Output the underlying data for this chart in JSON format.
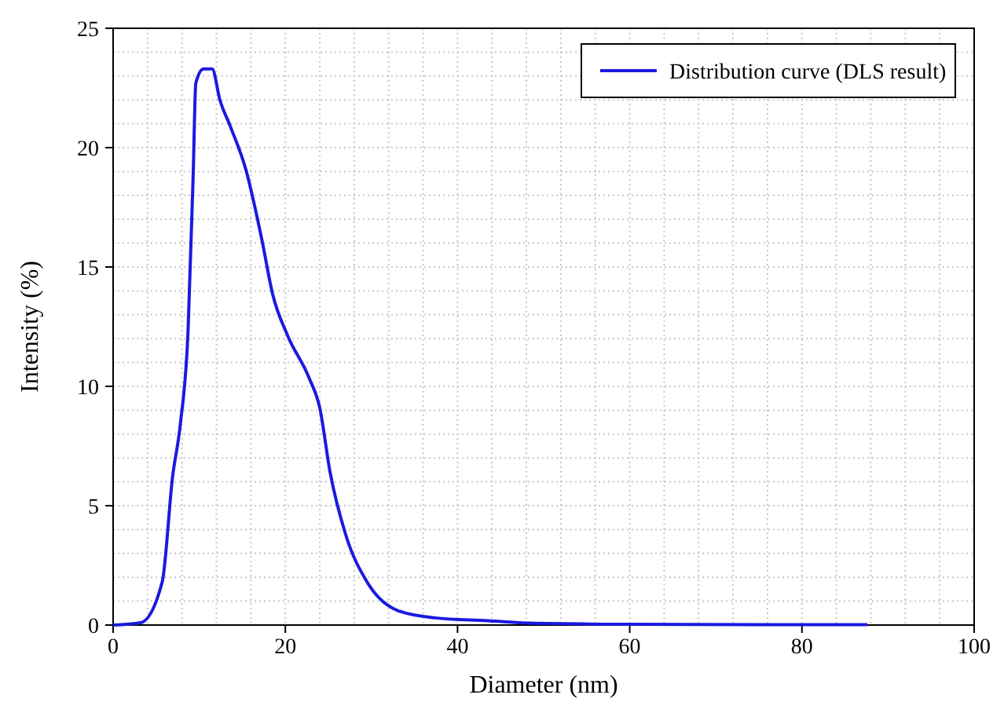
{
  "chart_data": {
    "type": "line",
    "xlabel": "Diameter (nm)",
    "ylabel": "Intensity (%)",
    "xlim": [
      0,
      100
    ],
    "ylim": [
      0,
      25
    ],
    "xticks": [
      0,
      {
        "value": 4,
        "label": null
      },
      {
        "value": 8,
        "label": null
      },
      {
        "value": 12,
        "label": null
      },
      {
        "value": 16,
        "label": null
      },
      20,
      {
        "value": 24,
        "label": null
      },
      {
        "value": 28,
        "label": null
      },
      {
        "value": 32,
        "label": null
      },
      {
        "value": 36,
        "label": null
      },
      40,
      {
        "value": 44,
        "label": null
      },
      {
        "value": 48,
        "label": null
      },
      {
        "value": 52,
        "label": null
      },
      {
        "value": 56,
        "label": null
      },
      60,
      {
        "value": 64,
        "label": null
      },
      {
        "value": 68,
        "label": null
      },
      {
        "value": 72,
        "label": null
      },
      {
        "value": 76,
        "label": null
      },
      80,
      {
        "value": 84,
        "label": null
      },
      {
        "value": 88,
        "label": null
      },
      {
        "value": 92,
        "label": null
      },
      {
        "value": 96,
        "label": null
      },
      100
    ],
    "yticks": [
      0,
      {
        "value": 1,
        "label": null
      },
      {
        "value": 2,
        "label": null
      },
      {
        "value": 3,
        "label": null
      },
      {
        "value": 4,
        "label": null
      },
      5,
      {
        "value": 6,
        "label": null
      },
      {
        "value": 7,
        "label": null
      },
      {
        "value": 8,
        "label": null
      },
      {
        "value": 9,
        "label": null
      },
      10,
      {
        "value": 11,
        "label": null
      },
      {
        "value": 12,
        "label": null
      },
      {
        "value": 13,
        "label": null
      },
      {
        "value": 14,
        "label": null
      },
      15,
      {
        "value": 16,
        "label": null
      },
      {
        "value": 17,
        "label": null
      },
      {
        "value": 18,
        "label": null
      },
      {
        "value": 19,
        "label": null
      },
      20,
      {
        "value": 21,
        "label": null
      },
      {
        "value": 22,
        "label": null
      },
      {
        "value": 23,
        "label": null
      },
      {
        "value": 24,
        "label": null
      },
      25
    ],
    "grid": true,
    "legend": "top right",
    "line_style": "solid",
    "series": [
      {
        "name": "Distribution curve (DLS result)",
        "color": "#1a1ae0",
        "x": [
          0,
          3.2,
          5.7,
          6.9,
          7.8,
          8.7,
          9.3,
          9.6,
          10.5,
          11.5,
          12.4,
          13.6,
          15.4,
          17.3,
          18.5,
          20.3,
          22.7,
          24.0,
          25.2,
          27.0,
          29.5,
          33.1,
          37.4,
          43.5,
          49,
          60,
          75,
          87.6
        ],
        "values": [
          0,
          0.1,
          1.8,
          6.2,
          8.4,
          12.3,
          18.9,
          22.7,
          23.3,
          23.3,
          22.0,
          20.9,
          19.1,
          16.1,
          13.9,
          12.1,
          10.4,
          9.1,
          6.4,
          3.8,
          1.8,
          0.6,
          0.3,
          0.18,
          0.07,
          0.03,
          0.02,
          0.02
        ]
      }
    ]
  }
}
